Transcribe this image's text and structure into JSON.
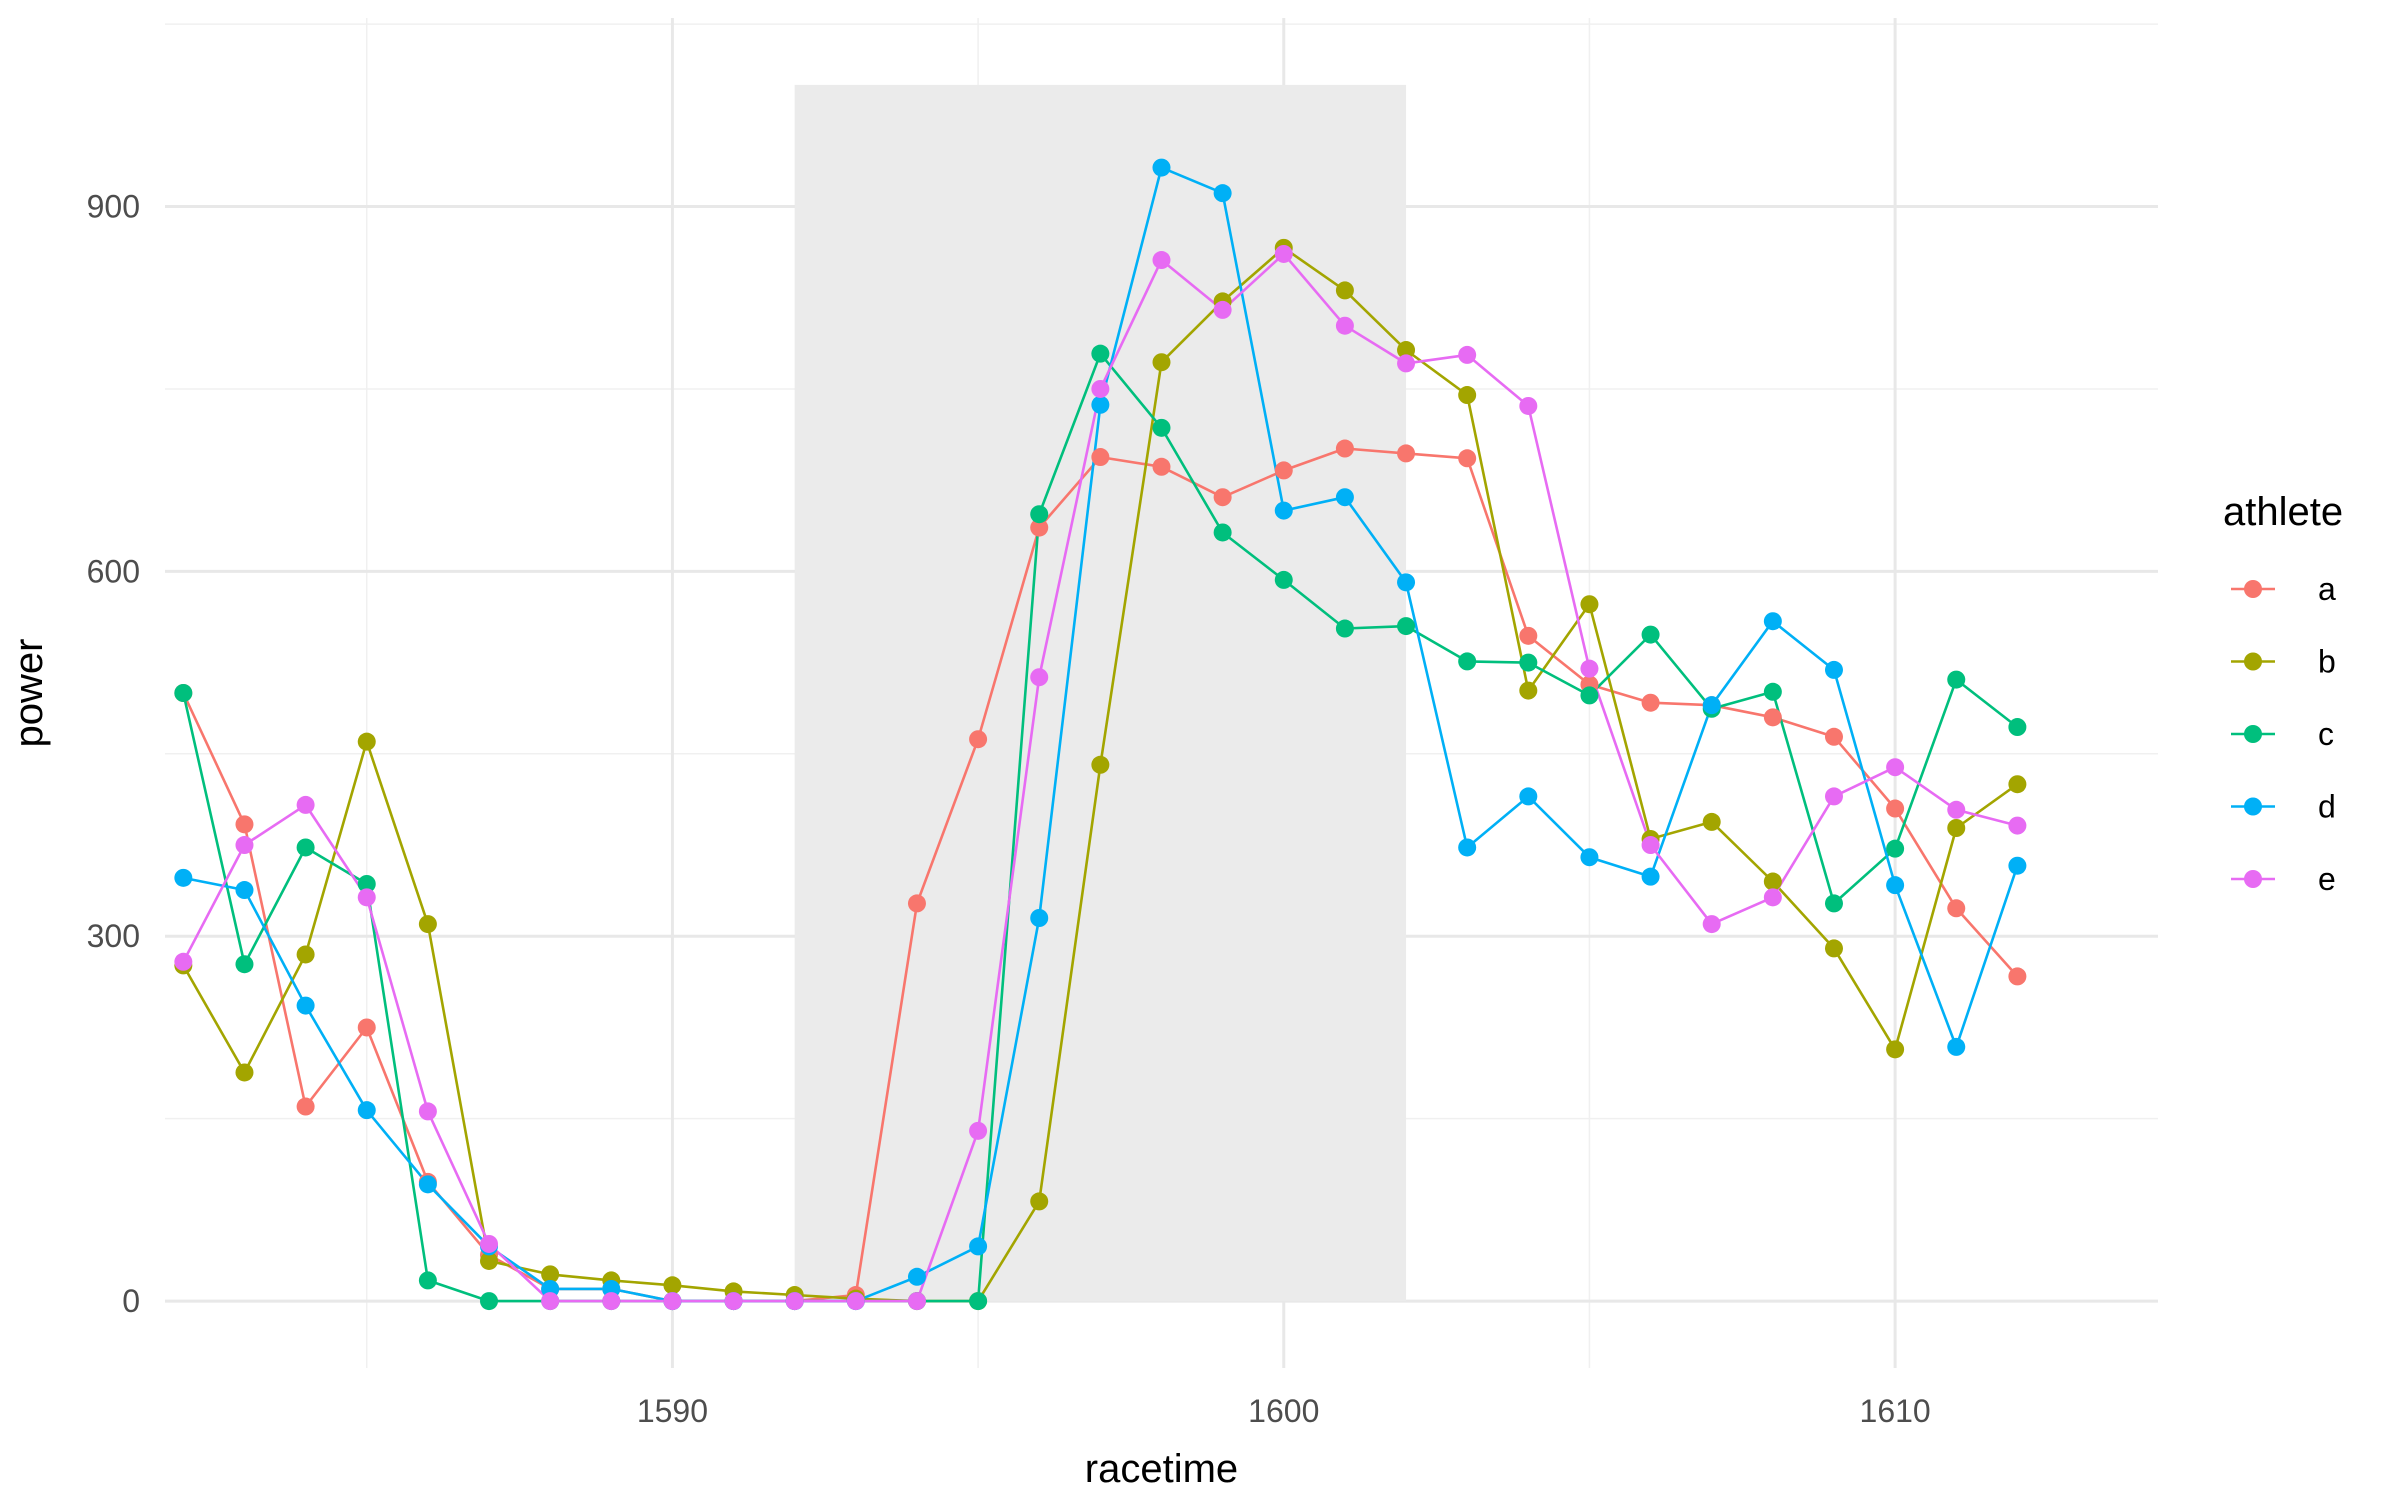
{
  "chart_data": {
    "type": "line",
    "xlabel": "racetime",
    "ylabel": "power",
    "xlim": [
      1581.7,
      1614.3
    ],
    "ylim": [
      -55,
      1055
    ],
    "x_ticks": [
      1590,
      1600,
      1610
    ],
    "x_minor_ticks": [
      1585,
      1595,
      1605
    ],
    "y_ticks": [
      0,
      300,
      600,
      900
    ],
    "y_minor_ticks": [
      150,
      450,
      750,
      1050
    ],
    "grid": true,
    "highlight": {
      "x_from": 1592,
      "x_to": 1602,
      "y_from": 0,
      "y_to": 1000,
      "color": "#ebebeb"
    },
    "legend": {
      "title": "athlete",
      "placement": "right"
    },
    "x": [
      1582,
      1583,
      1584,
      1585,
      1586,
      1587,
      1588,
      1589,
      1590,
      1591,
      1592,
      1593,
      1594,
      1595,
      1596,
      1597,
      1598,
      1599,
      1600,
      1601,
      1602,
      1603,
      1604,
      1605,
      1606,
      1607,
      1608,
      1609,
      1610,
      1611,
      1612
    ],
    "series": [
      {
        "name": "a",
        "color": "#F8766D",
        "values": [
          500,
          392,
          160,
          225,
          98,
          38,
          10,
          10,
          0,
          0,
          0,
          5,
          327,
          462,
          636,
          694,
          686,
          661,
          683,
          701,
          697,
          693,
          547,
          507,
          492,
          490,
          480,
          464,
          405,
          323,
          267
        ]
      },
      {
        "name": "b",
        "color": "#A3A500",
        "values": [
          276,
          188,
          285,
          460,
          310,
          33,
          22,
          17,
          13,
          8,
          5,
          2,
          0,
          0,
          82,
          441,
          772,
          822,
          866,
          831,
          782,
          745,
          502,
          573,
          380,
          394,
          345,
          290,
          207,
          389,
          425
        ]
      },
      {
        "name": "c",
        "color": "#00BF7D",
        "values": [
          500,
          277,
          373,
          343,
          17,
          0,
          0,
          0,
          0,
          0,
          0,
          0,
          0,
          0,
          647,
          779,
          718,
          632,
          593,
          553,
          555,
          526,
          525,
          498,
          548,
          487,
          501,
          327,
          372,
          511,
          472
        ]
      },
      {
        "name": "d",
        "color": "#00B0F6",
        "values": [
          348,
          338,
          243,
          157,
          96,
          45,
          10,
          10,
          0,
          0,
          0,
          0,
          20,
          45,
          315,
          737,
          932,
          911,
          650,
          661,
          591,
          373,
          415,
          365,
          349,
          490,
          559,
          519,
          342,
          209,
          358
        ]
      },
      {
        "name": "e",
        "color": "#E76BF3",
        "values": [
          279,
          375,
          408,
          332,
          156,
          47,
          0,
          0,
          0,
          0,
          0,
          0,
          0,
          140,
          513,
          750,
          856,
          815,
          861,
          802,
          771,
          778,
          736,
          520,
          375,
          310,
          332,
          415,
          439,
          404,
          391
        ]
      }
    ]
  }
}
